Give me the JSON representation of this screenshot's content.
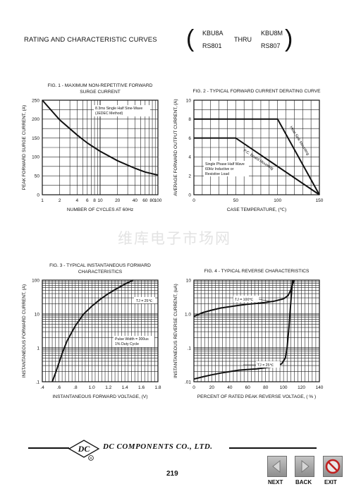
{
  "header": {
    "title": "RATING AND CHARACTERISTIC CURVES",
    "part_left_top": "KBU8A",
    "part_left_bottom": "RS801",
    "thru": "THRU",
    "part_right_top": "KBU8M",
    "part_right_bottom": "RS807"
  },
  "watermark": "维库电子市场网",
  "footer": {
    "company": "DC COMPONENTS CO.,  LTD.",
    "logo_text": "DC",
    "logo_mark": "R",
    "page_number": "219",
    "buttons": {
      "next": "NEXT",
      "back": "BACK",
      "exit": "EXIT"
    }
  },
  "chart_data": [
    {
      "type": "line",
      "title_line1": "FIG. 1 - MAXIMUM NON-REPETITIVE FORWARD",
      "title_line2": "SURGE CURRENT",
      "xlabel": "NUMBER OF CYCLES AT 60Hz",
      "ylabel": "PEAK FORWARD SURGE CURRENT, (A)",
      "x_scale": "log",
      "xlim": [
        1,
        100
      ],
      "ylim": [
        0,
        250
      ],
      "xticks": [
        1,
        2,
        4,
        6,
        8,
        10,
        20,
        40,
        60,
        80,
        100
      ],
      "xtick_labels": [
        "1",
        "2",
        "4",
        "6",
        "8",
        "10",
        "20",
        "40",
        "60",
        "80",
        "100"
      ],
      "yticks": [
        0,
        50,
        100,
        150,
        200,
        250
      ],
      "ytick_labels": [
        "0",
        "50",
        "100",
        "150",
        "200",
        "250"
      ],
      "annotation": [
        "8.3ms Single Half Sine-Wave",
        "(JEDEC Method)"
      ],
      "series": [
        {
          "x": [
            1,
            2,
            4,
            6,
            10,
            20,
            40,
            60,
            100
          ],
          "y": [
            250,
            198,
            158,
            137,
            115,
            90,
            70,
            60,
            52
          ]
        }
      ]
    },
    {
      "type": "line",
      "title_line1": "FIG. 2 - TYPICAL FORWARD CURRENT DERATING CURVE",
      "xlabel": "CASE TEMPERATURE, (℃)",
      "ylabel": "AVERAGE FORWARD OUTPUT CURRENT, (A)",
      "xlim": [
        0,
        150
      ],
      "ylim": [
        0,
        10
      ],
      "xticks": [
        0,
        50,
        100,
        150
      ],
      "xtick_labels": [
        "0",
        "50",
        "100",
        "150"
      ],
      "yticks": [
        0,
        2,
        4,
        6,
        8,
        10
      ],
      "ytick_labels": [
        "0",
        "2",
        "4",
        "6",
        "8",
        "10"
      ],
      "annotation": [
        "Single Phase Half Wave",
        "60Hz Inductive or",
        "Resistive Load"
      ],
      "series": [
        {
          "name": "Heat-Sink Mounting",
          "x": [
            0,
            100,
            150
          ],
          "y": [
            8,
            8,
            0
          ]
        },
        {
          "name": "P.C. Board Mounting",
          "x": [
            0,
            50,
            150
          ],
          "y": [
            6,
            6,
            0
          ]
        }
      ]
    },
    {
      "type": "line",
      "title_line1": "FIG. 3 - TYPICAL INSTANTANEOUS FORWARD",
      "title_line2": "CHARACTERISTICS",
      "xlabel": "INSTANTANEOUS FORWARD VOLTAGE, (V)",
      "ylabel": "INSTANTANEOUS FORWARD CURRENT, (A)",
      "y_scale": "log",
      "xlim": [
        0.4,
        1.8
      ],
      "ylim": [
        0.1,
        100
      ],
      "xticks": [
        0.4,
        0.6,
        0.8,
        1.0,
        1.2,
        1.4,
        1.6,
        1.8
      ],
      "xtick_labels": [
        ".4",
        ".6",
        ".8",
        "1.0",
        "1.2",
        "1.4",
        "1.6",
        "1.8"
      ],
      "yticks": [
        0.1,
        1,
        10,
        100
      ],
      "ytick_labels": [
        ".1",
        "1",
        "10",
        "100"
      ],
      "annotation_temp": "TJ = 25℃",
      "annotation": [
        "Pulse Width = 300us",
        "1% Duty Cycle"
      ],
      "series": [
        {
          "x": [
            0.52,
            0.56,
            0.6,
            0.65,
            0.7,
            0.8,
            0.9,
            1.0,
            1.1,
            1.2,
            1.3,
            1.4,
            1.5
          ],
          "y": [
            0.1,
            0.18,
            0.35,
            0.8,
            1.6,
            4.5,
            10,
            17,
            27,
            40,
            56,
            76,
            100
          ]
        }
      ]
    },
    {
      "type": "line",
      "title_line1": "FIG. 4 - TYPICAL REVERSE CHARACTERISTICS",
      "xlabel": "PERCENT OF RATED PEAK REVERSE VOLTAGE, ( % )",
      "ylabel": "INSTANTANEOUS REVERSE CURRENT, (uA)",
      "y_scale": "log",
      "xlim": [
        0,
        140
      ],
      "ylim": [
        0.01,
        10
      ],
      "xticks": [
        0,
        20,
        40,
        60,
        80,
        100,
        120,
        140
      ],
      "xtick_labels": [
        "0",
        "20",
        "40",
        "60",
        "80",
        "100",
        "120",
        "140"
      ],
      "yticks": [
        0.01,
        0.1,
        1,
        10
      ],
      "ytick_labels": [
        ".01",
        ".1",
        "1.0",
        "10"
      ],
      "series": [
        {
          "name": "TJ = 100℃",
          "x": [
            0,
            10,
            20,
            30,
            40,
            50,
            60,
            70,
            80,
            90,
            100,
            105,
            108,
            110,
            112
          ],
          "y": [
            0.85,
            1.1,
            1.3,
            1.5,
            1.65,
            1.8,
            1.95,
            2.05,
            2.2,
            2.4,
            2.8,
            3.5,
            5,
            7.5,
            10
          ]
        },
        {
          "name": "TJ = 25℃",
          "x": [
            0,
            10,
            20,
            30,
            40,
            50,
            60,
            70,
            80,
            90,
            98,
            102,
            104,
            106,
            108,
            110
          ],
          "y": [
            0.012,
            0.014,
            0.016,
            0.018,
            0.02,
            0.022,
            0.023,
            0.024,
            0.026,
            0.028,
            0.034,
            0.05,
            0.1,
            0.4,
            2,
            10
          ]
        }
      ]
    }
  ]
}
